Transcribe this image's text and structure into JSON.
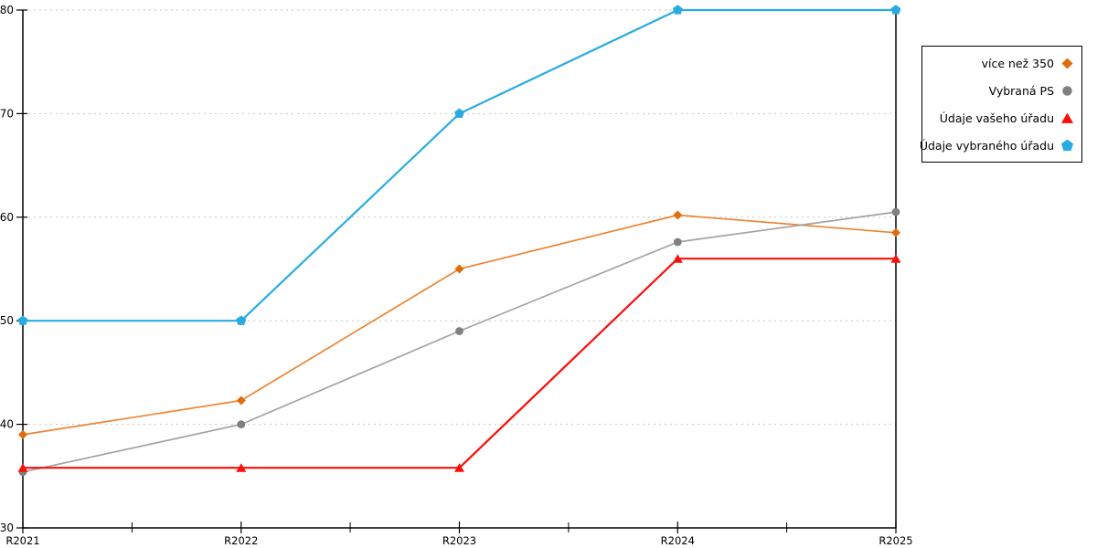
{
  "chart_data": {
    "type": "line",
    "title": "",
    "xlabel": "",
    "ylabel": "",
    "categories": [
      "R2021",
      "R2022",
      "R2023",
      "R2024",
      "R2025"
    ],
    "y_ticks": [
      30,
      40,
      50,
      60,
      70,
      80
    ],
    "ylim": [
      30,
      80
    ],
    "grid": "horizontal-dotted",
    "legend_position": "outside-top-right",
    "series": [
      {
        "name": "více než 350",
        "marker": "diamond",
        "line_color": "#EE8434",
        "marker_color": "#E06C0C",
        "line_width": 1.7,
        "values": [
          39,
          42.3,
          55,
          60.2,
          58.5
        ]
      },
      {
        "name": "Vybraná PS",
        "marker": "circle",
        "line_color": "#A3A3A3",
        "marker_color": "#808080",
        "line_width": 1.7,
        "values": [
          35.4,
          40,
          49,
          57.6,
          60.5
        ]
      },
      {
        "name": "Údaje vašeho úřadu",
        "marker": "triangle",
        "line_color": "#F8100C",
        "marker_color": "#F8100C",
        "line_width": 2.2,
        "values": [
          35.8,
          35.8,
          35.8,
          56,
          56
        ]
      },
      {
        "name": "Údaje vybraného úřadu",
        "marker": "pentagon",
        "line_color": "#29ABE2",
        "marker_color": "#29ABE2",
        "line_width": 2.2,
        "values": [
          50,
          50,
          70,
          80,
          80
        ]
      }
    ]
  },
  "colors": {
    "background": "#ffffff",
    "axis": "#000000",
    "grid": "#c4c4c4",
    "text": "#000000",
    "legend_border": "#000000"
  }
}
